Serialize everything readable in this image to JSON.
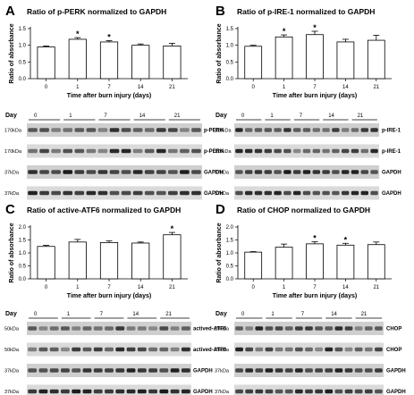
{
  "panels": [
    {
      "letter": "A",
      "chart_data": {
        "type": "bar",
        "title": "Ratio of p-PERK normalized to GAPDH",
        "xlabel": "Time after burn injury (days)",
        "ylabel": "Ratio of absorbance",
        "categories": [
          "0",
          "1",
          "7",
          "14",
          "21"
        ],
        "values": [
          0.95,
          1.18,
          1.1,
          1.0,
          0.98
        ],
        "errors": [
          0.03,
          0.05,
          0.04,
          0.04,
          0.08
        ],
        "significant": [
          false,
          true,
          true,
          false,
          false
        ],
        "yticks": [
          "0.0",
          "0.5",
          "1.0",
          "1.5"
        ],
        "ylim": [
          0,
          1.5
        ]
      },
      "blot": {
        "day_label": "Day",
        "days": [
          "0",
          "1",
          "7",
          "14",
          "21"
        ],
        "rows": [
          {
            "mw": "170kDa",
            "name": "p-PERK"
          },
          {
            "mw": "170kDa",
            "name": "p-PERK"
          },
          {
            "mw": "37kDa",
            "name": "GAPDH"
          },
          {
            "mw": "37kDa",
            "name": "GAPDH"
          }
        ]
      }
    },
    {
      "letter": "B",
      "chart_data": {
        "type": "bar",
        "title": "Ratio of p-IRE-1 normalized to GAPDH",
        "xlabel": "Time after burn injury (days)",
        "ylabel": "Ratio of absorbance",
        "categories": [
          "0",
          "1",
          "7",
          "14",
          "21"
        ],
        "values": [
          0.97,
          1.25,
          1.32,
          1.1,
          1.15
        ],
        "errors": [
          0.03,
          0.06,
          0.1,
          0.08,
          0.15
        ],
        "significant": [
          false,
          true,
          true,
          false,
          false
        ],
        "yticks": [
          "0.0",
          "0.5",
          "1.0",
          "1.5"
        ],
        "ylim": [
          0,
          1.5
        ]
      },
      "blot": {
        "day_label": "Day",
        "days": [
          "0",
          "1",
          "7",
          "14",
          "21"
        ],
        "rows": [
          {
            "mw": "110kDa",
            "name": "p-IRE-1"
          },
          {
            "mw": "110kDa",
            "name": "p-IRE-1"
          },
          {
            "mw": "37kDa",
            "name": "GAPDH"
          },
          {
            "mw": "37kDa",
            "name": "GAPDH"
          }
        ]
      }
    },
    {
      "letter": "C",
      "chart_data": {
        "type": "bar",
        "title": "Ratio of active-ATF6 normalized to GAPDH",
        "xlabel": "Time after burn injury (days)",
        "ylabel": "Ratio of absorbance",
        "categories": [
          "0",
          "1",
          "7",
          "14",
          "21"
        ],
        "values": [
          1.25,
          1.42,
          1.4,
          1.38,
          1.7
        ],
        "errors": [
          0.04,
          0.1,
          0.06,
          0.04,
          0.09
        ],
        "significant": [
          false,
          false,
          false,
          false,
          true
        ],
        "yticks": [
          "0.0",
          "0.5",
          "1.0",
          "1.5",
          "2.0"
        ],
        "ylim": [
          0,
          2.0
        ]
      },
      "blot": {
        "day_label": "Day",
        "days": [
          "0",
          "1",
          "7",
          "14",
          "21"
        ],
        "rows": [
          {
            "mw": "50kDa",
            "name": "actived-ATF6"
          },
          {
            "mw": "50kDa",
            "name": "actived-ATF6"
          },
          {
            "mw": "37kDa",
            "name": "GAPDH"
          },
          {
            "mw": "37kDa",
            "name": "GAPDH"
          }
        ]
      }
    },
    {
      "letter": "D",
      "chart_data": {
        "type": "bar",
        "title": "Ratio of CHOP normalized to GAPDH",
        "xlabel": "Time after burn injury (days)",
        "ylabel": "Ratio of absorbance",
        "categories": [
          "0",
          "1",
          "7",
          "14",
          "21"
        ],
        "values": [
          1.03,
          1.22,
          1.35,
          1.3,
          1.32
        ],
        "errors": [
          0.02,
          0.12,
          0.08,
          0.07,
          0.1
        ],
        "significant": [
          false,
          false,
          true,
          true,
          false
        ],
        "yticks": [
          "0.0",
          "0.5",
          "1.0",
          "1.5",
          "2.0"
        ],
        "ylim": [
          0,
          2.0
        ]
      },
      "blot": {
        "day_label": "Day",
        "days": [
          "0",
          "1",
          "7",
          "14",
          "21"
        ],
        "rows": [
          {
            "mw": "29kDa",
            "name": "CHOP"
          },
          {
            "mw": "29kDa",
            "name": "CHOP"
          },
          {
            "mw": "37kDa",
            "name": "GAPDH"
          },
          {
            "mw": "37kDa",
            "name": "GAPDH"
          }
        ]
      }
    }
  ]
}
